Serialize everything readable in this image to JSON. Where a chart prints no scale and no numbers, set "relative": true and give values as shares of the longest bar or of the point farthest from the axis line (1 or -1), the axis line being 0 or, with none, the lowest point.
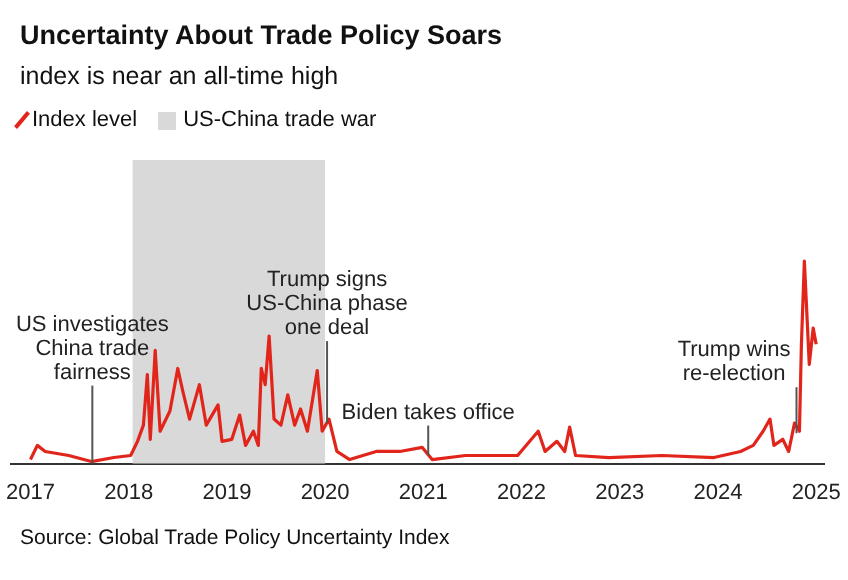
{
  "chart_data": {
    "type": "line",
    "title": "Uncertainty About Trade Policy Soars",
    "subtitle": "index is near an all-time high",
    "relative": true,
    "legend": "top left",
    "xlim": [
      2016.8,
      2025.08
    ],
    "xticks": [
      2017,
      2018,
      2019,
      2020,
      2021,
      2022,
      2023,
      2024,
      2025
    ],
    "x": [
      2017.0,
      2017.07,
      2017.15,
      2017.39,
      2017.62,
      2017.85,
      2018.02,
      2018.09,
      2018.15,
      2018.19,
      2018.22,
      2018.27,
      2018.32,
      2018.42,
      2018.5,
      2018.55,
      2018.62,
      2018.72,
      2018.79,
      2018.91,
      2018.95,
      2019.05,
      2019.13,
      2019.19,
      2019.27,
      2019.32,
      2019.35,
      2019.39,
      2019.43,
      2019.48,
      2019.55,
      2019.62,
      2019.69,
      2019.75,
      2019.82,
      2019.92,
      2019.97,
      2020.04,
      2020.12,
      2020.25,
      2020.52,
      2020.76,
      2020.99,
      2021.09,
      2021.43,
      2021.96,
      2022.17,
      2022.24,
      2022.36,
      2022.44,
      2022.49,
      2022.55,
      2022.89,
      2023.43,
      2023.96,
      2024.23,
      2024.36,
      2024.46,
      2024.53,
      2024.57,
      2024.66,
      2024.72,
      2024.78,
      2024.83,
      2024.85,
      2024.88,
      2024.93,
      2024.97,
      2025.0
    ],
    "series": [
      {
        "name": "Index level",
        "color": "#e1251b",
        "values": [
          0.02,
          0.09,
          0.06,
          0.04,
          0.01,
          0.03,
          0.04,
          0.11,
          0.19,
          0.44,
          0.12,
          0.56,
          0.16,
          0.26,
          0.47,
          0.36,
          0.22,
          0.39,
          0.19,
          0.29,
          0.11,
          0.12,
          0.24,
          0.09,
          0.16,
          0.09,
          0.47,
          0.39,
          0.63,
          0.22,
          0.19,
          0.34,
          0.19,
          0.27,
          0.16,
          0.46,
          0.16,
          0.22,
          0.06,
          0.02,
          0.06,
          0.06,
          0.08,
          0.02,
          0.04,
          0.04,
          0.16,
          0.06,
          0.11,
          0.06,
          0.18,
          0.04,
          0.03,
          0.04,
          0.03,
          0.06,
          0.09,
          0.16,
          0.22,
          0.09,
          0.12,
          0.06,
          0.2,
          0.16,
          0.59,
          1.0,
          0.49,
          0.67,
          0.59
        ]
      }
    ],
    "bands": [
      {
        "axis": "x",
        "from": 2018.04,
        "to": 2020.0,
        "label": "US-China trade war",
        "color": "#d9d9d9"
      }
    ],
    "annotations": [
      {
        "text": "US investigates\nChina trade\nfairness",
        "x": 2017.63,
        "y": 0.0
      },
      {
        "text": "Trump signs\nUS-China phase\none deal",
        "x": 2020.02,
        "y": 0.2
      },
      {
        "text": "Biden takes office",
        "x": 2021.05,
        "y": 0.04
      },
      {
        "text": "Trump wins\nre-election",
        "x": 2024.8,
        "y": 0.15
      },
      "Source: Global Trade Policy Uncertainty Index"
    ]
  }
}
